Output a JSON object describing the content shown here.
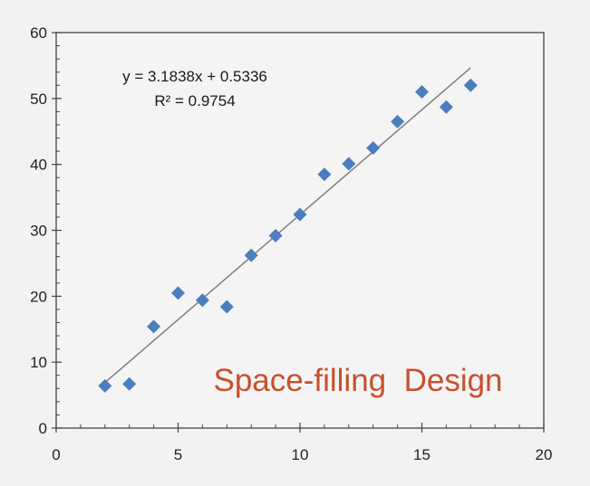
{
  "chart_data": {
    "type": "scatter",
    "title": "",
    "xlabel": "",
    "ylabel": "",
    "xlim": [
      0,
      20
    ],
    "ylim": [
      0,
      60
    ],
    "x_ticks": [
      0,
      5,
      10,
      15,
      20
    ],
    "y_ticks": [
      0,
      10,
      20,
      30,
      40,
      50,
      60
    ],
    "grid": false,
    "legend": "none",
    "series": [
      {
        "marker": "diamond",
        "color": "#4a7ebf",
        "x": [
          2,
          3,
          4,
          5,
          6,
          7,
          8,
          9,
          10,
          11,
          12,
          13,
          14,
          15,
          16,
          17
        ],
        "y": [
          6.4,
          6.7,
          15.4,
          20.5,
          19.4,
          18.4,
          26.2,
          29.2,
          32.4,
          38.5,
          40.1,
          42.5,
          46.5,
          51.0,
          48.7,
          52.0
        ]
      }
    ],
    "trendline": {
      "type": "linear",
      "slope": 3.1838,
      "intercept": 0.5336,
      "x_range": [
        2,
        17
      ],
      "color": "#7f7f7f"
    },
    "annotations": {
      "equation": "y = 3.1838x + 0.5336",
      "r_squared": "R² = 0.9754",
      "design_label": "Space-filling  Design",
      "design_label_color": "#c8502c"
    }
  }
}
